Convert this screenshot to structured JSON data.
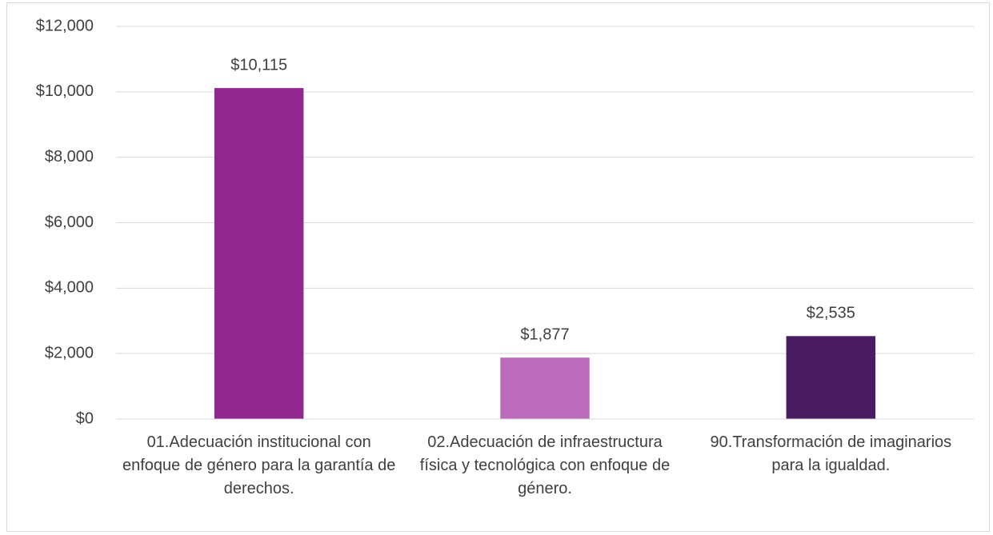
{
  "chart_data": {
    "type": "bar",
    "categories": [
      "01.Adecuación institucional con enfoque de género para la garantía de derechos.",
      "02.Adecuación de infraestructura física y tecnológica con enfoque de género.",
      "90.Transformación de imaginarios para la igualdad."
    ],
    "values": [
      10115,
      1877,
      2535
    ],
    "value_labels": [
      "$10,115",
      "$1,877",
      "$2,535"
    ],
    "colors": [
      "#92278f",
      "#bb6bbb",
      "#4a1c63"
    ],
    "ylim": [
      0,
      12000
    ],
    "yticks": [
      {
        "value": 0,
        "label": "$0"
      },
      {
        "value": 2000,
        "label": "$2,000"
      },
      {
        "value": 4000,
        "label": "$4,000"
      },
      {
        "value": 6000,
        "label": "$6,000"
      },
      {
        "value": 8000,
        "label": "$8,000"
      },
      {
        "value": 10000,
        "label": "$10,000"
      },
      {
        "value": 12000,
        "label": "$12,000"
      }
    ],
    "grid": true
  }
}
